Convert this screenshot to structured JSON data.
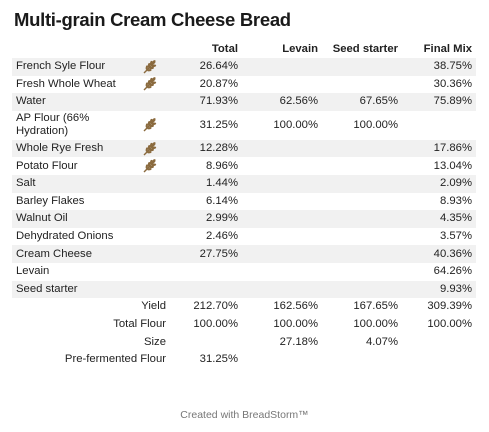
{
  "title": "Multi-grain Cream Cheese Bread",
  "headers": {
    "total": "Total",
    "levain": "Levain",
    "seed": "Seed starter",
    "final": "Final Mix"
  },
  "ingredients": [
    {
      "name": "French Syle Flour",
      "flour_icon": "wheat-icon",
      "total": "26.64%",
      "levain": "",
      "seed": "",
      "final": "38.75%"
    },
    {
      "name": "Fresh Whole Wheat",
      "flour_icon": "wheat-icon",
      "total": "20.87%",
      "levain": "",
      "seed": "",
      "final": "30.36%"
    },
    {
      "name": "Water",
      "flour_icon": "",
      "total": "71.93%",
      "levain": "62.56%",
      "seed": "67.65%",
      "final": "75.89%"
    },
    {
      "name": "AP Flour (66% Hydration)",
      "flour_icon": "wheat-icon",
      "total": "31.25%",
      "levain": "100.00%",
      "seed": "100.00%",
      "final": ""
    },
    {
      "name": "Whole Rye Fresh",
      "flour_icon": "wheat-icon",
      "total": "12.28%",
      "levain": "",
      "seed": "",
      "final": "17.86%"
    },
    {
      "name": "Potato Flour",
      "flour_icon": "wheat-icon",
      "total": "8.96%",
      "levain": "",
      "seed": "",
      "final": "13.04%"
    },
    {
      "name": "Salt",
      "flour_icon": "",
      "total": "1.44%",
      "levain": "",
      "seed": "",
      "final": "2.09%"
    },
    {
      "name": "Barley Flakes",
      "flour_icon": "",
      "total": "6.14%",
      "levain": "",
      "seed": "",
      "final": "8.93%"
    },
    {
      "name": "Walnut Oil",
      "flour_icon": "",
      "total": "2.99%",
      "levain": "",
      "seed": "",
      "final": "4.35%"
    },
    {
      "name": "Dehydrated Onions",
      "flour_icon": "",
      "total": "2.46%",
      "levain": "",
      "seed": "",
      "final": "3.57%"
    },
    {
      "name": "Cream Cheese",
      "flour_icon": "",
      "total": "27.75%",
      "levain": "",
      "seed": "",
      "final": "40.36%"
    },
    {
      "name": "Levain",
      "flour_icon": "",
      "total": "",
      "levain": "",
      "seed": "",
      "final": "64.26%"
    },
    {
      "name": "Seed starter",
      "flour_icon": "",
      "total": "",
      "levain": "",
      "seed": "",
      "final": "9.93%"
    }
  ],
  "summary": [
    {
      "label": "Yield",
      "total": "212.70%",
      "levain": "162.56%",
      "seed": "167.65%",
      "final": "309.39%"
    },
    {
      "label": "Total Flour",
      "total": "100.00%",
      "levain": "100.00%",
      "seed": "100.00%",
      "final": "100.00%"
    },
    {
      "label": "Size",
      "total": "",
      "levain": "27.18%",
      "seed": "4.07%",
      "final": ""
    },
    {
      "label": "Pre-fermented Flour",
      "total": "31.25%",
      "levain": "",
      "seed": "",
      "final": ""
    }
  ],
  "footer": "Created with BreadStorm™",
  "colors": {
    "wheat": "#8a6a3e",
    "stripe": "#f1f1f1"
  }
}
